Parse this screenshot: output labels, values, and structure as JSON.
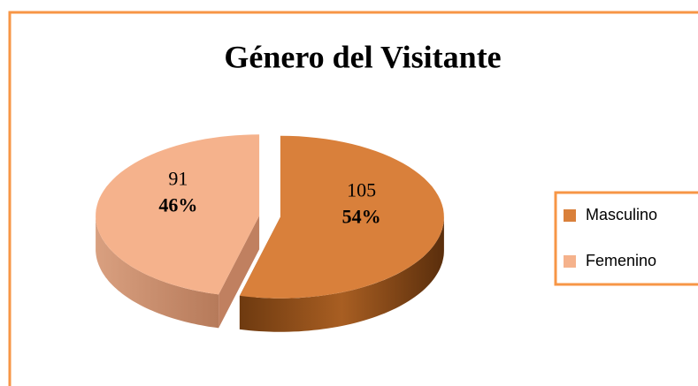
{
  "chart_data": {
    "type": "pie",
    "title": "Género del Visitante",
    "categories": [
      "Masculino",
      "Femenino"
    ],
    "values": [
      54,
      46
    ],
    "value_labels": [
      "54%",
      "46%"
    ],
    "counts": [
      105,
      91
    ],
    "colors": [
      "#d9803b",
      "#f5b28c"
    ],
    "legend": "right",
    "style": "3d",
    "exploded": true
  }
}
